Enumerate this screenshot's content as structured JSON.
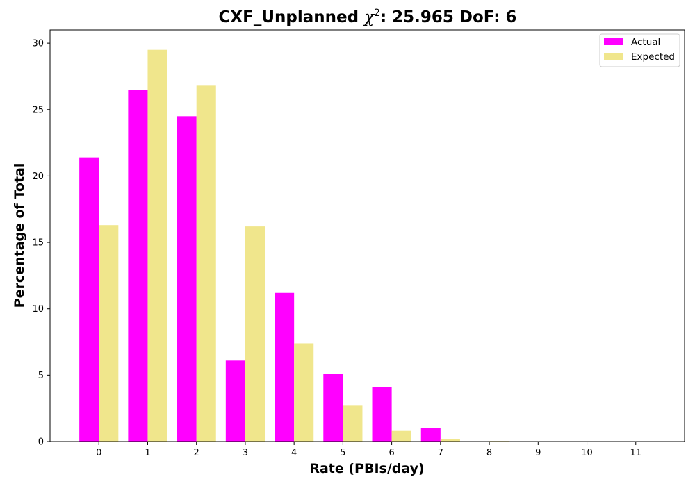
{
  "chart_data": {
    "type": "bar",
    "title": "CXF_Unplanned χ²: 25.965 DoF: 6",
    "title_main": "CXF_Unplanned ",
    "title_chi": "χ",
    "title_sup": "2",
    "title_rest": ": 25.965 DoF: 6",
    "xlabel": "Rate (PBIs/day)",
    "ylabel": "Percentage of Total",
    "categories": [
      "0",
      "1",
      "2",
      "3",
      "4",
      "5",
      "6",
      "7",
      "8",
      "9",
      "10",
      "11"
    ],
    "series": [
      {
        "name": "Actual",
        "color": "#ff00ff",
        "values": [
          21.4,
          26.5,
          24.5,
          6.1,
          11.2,
          5.1,
          4.1,
          1.0,
          0,
          0,
          0,
          0
        ]
      },
      {
        "name": "Expected",
        "color": "#f0e68c",
        "values": [
          16.3,
          29.5,
          26.8,
          16.2,
          7.4,
          2.7,
          0.8,
          0.2,
          0.04,
          0.01,
          0,
          0
        ]
      }
    ],
    "yticks": [
      0,
      5,
      10,
      15,
      20,
      25,
      30
    ],
    "ylim": [
      0,
      31
    ],
    "xlim": [
      -1,
      12
    ],
    "grid": false,
    "legend_position": "top-right"
  }
}
